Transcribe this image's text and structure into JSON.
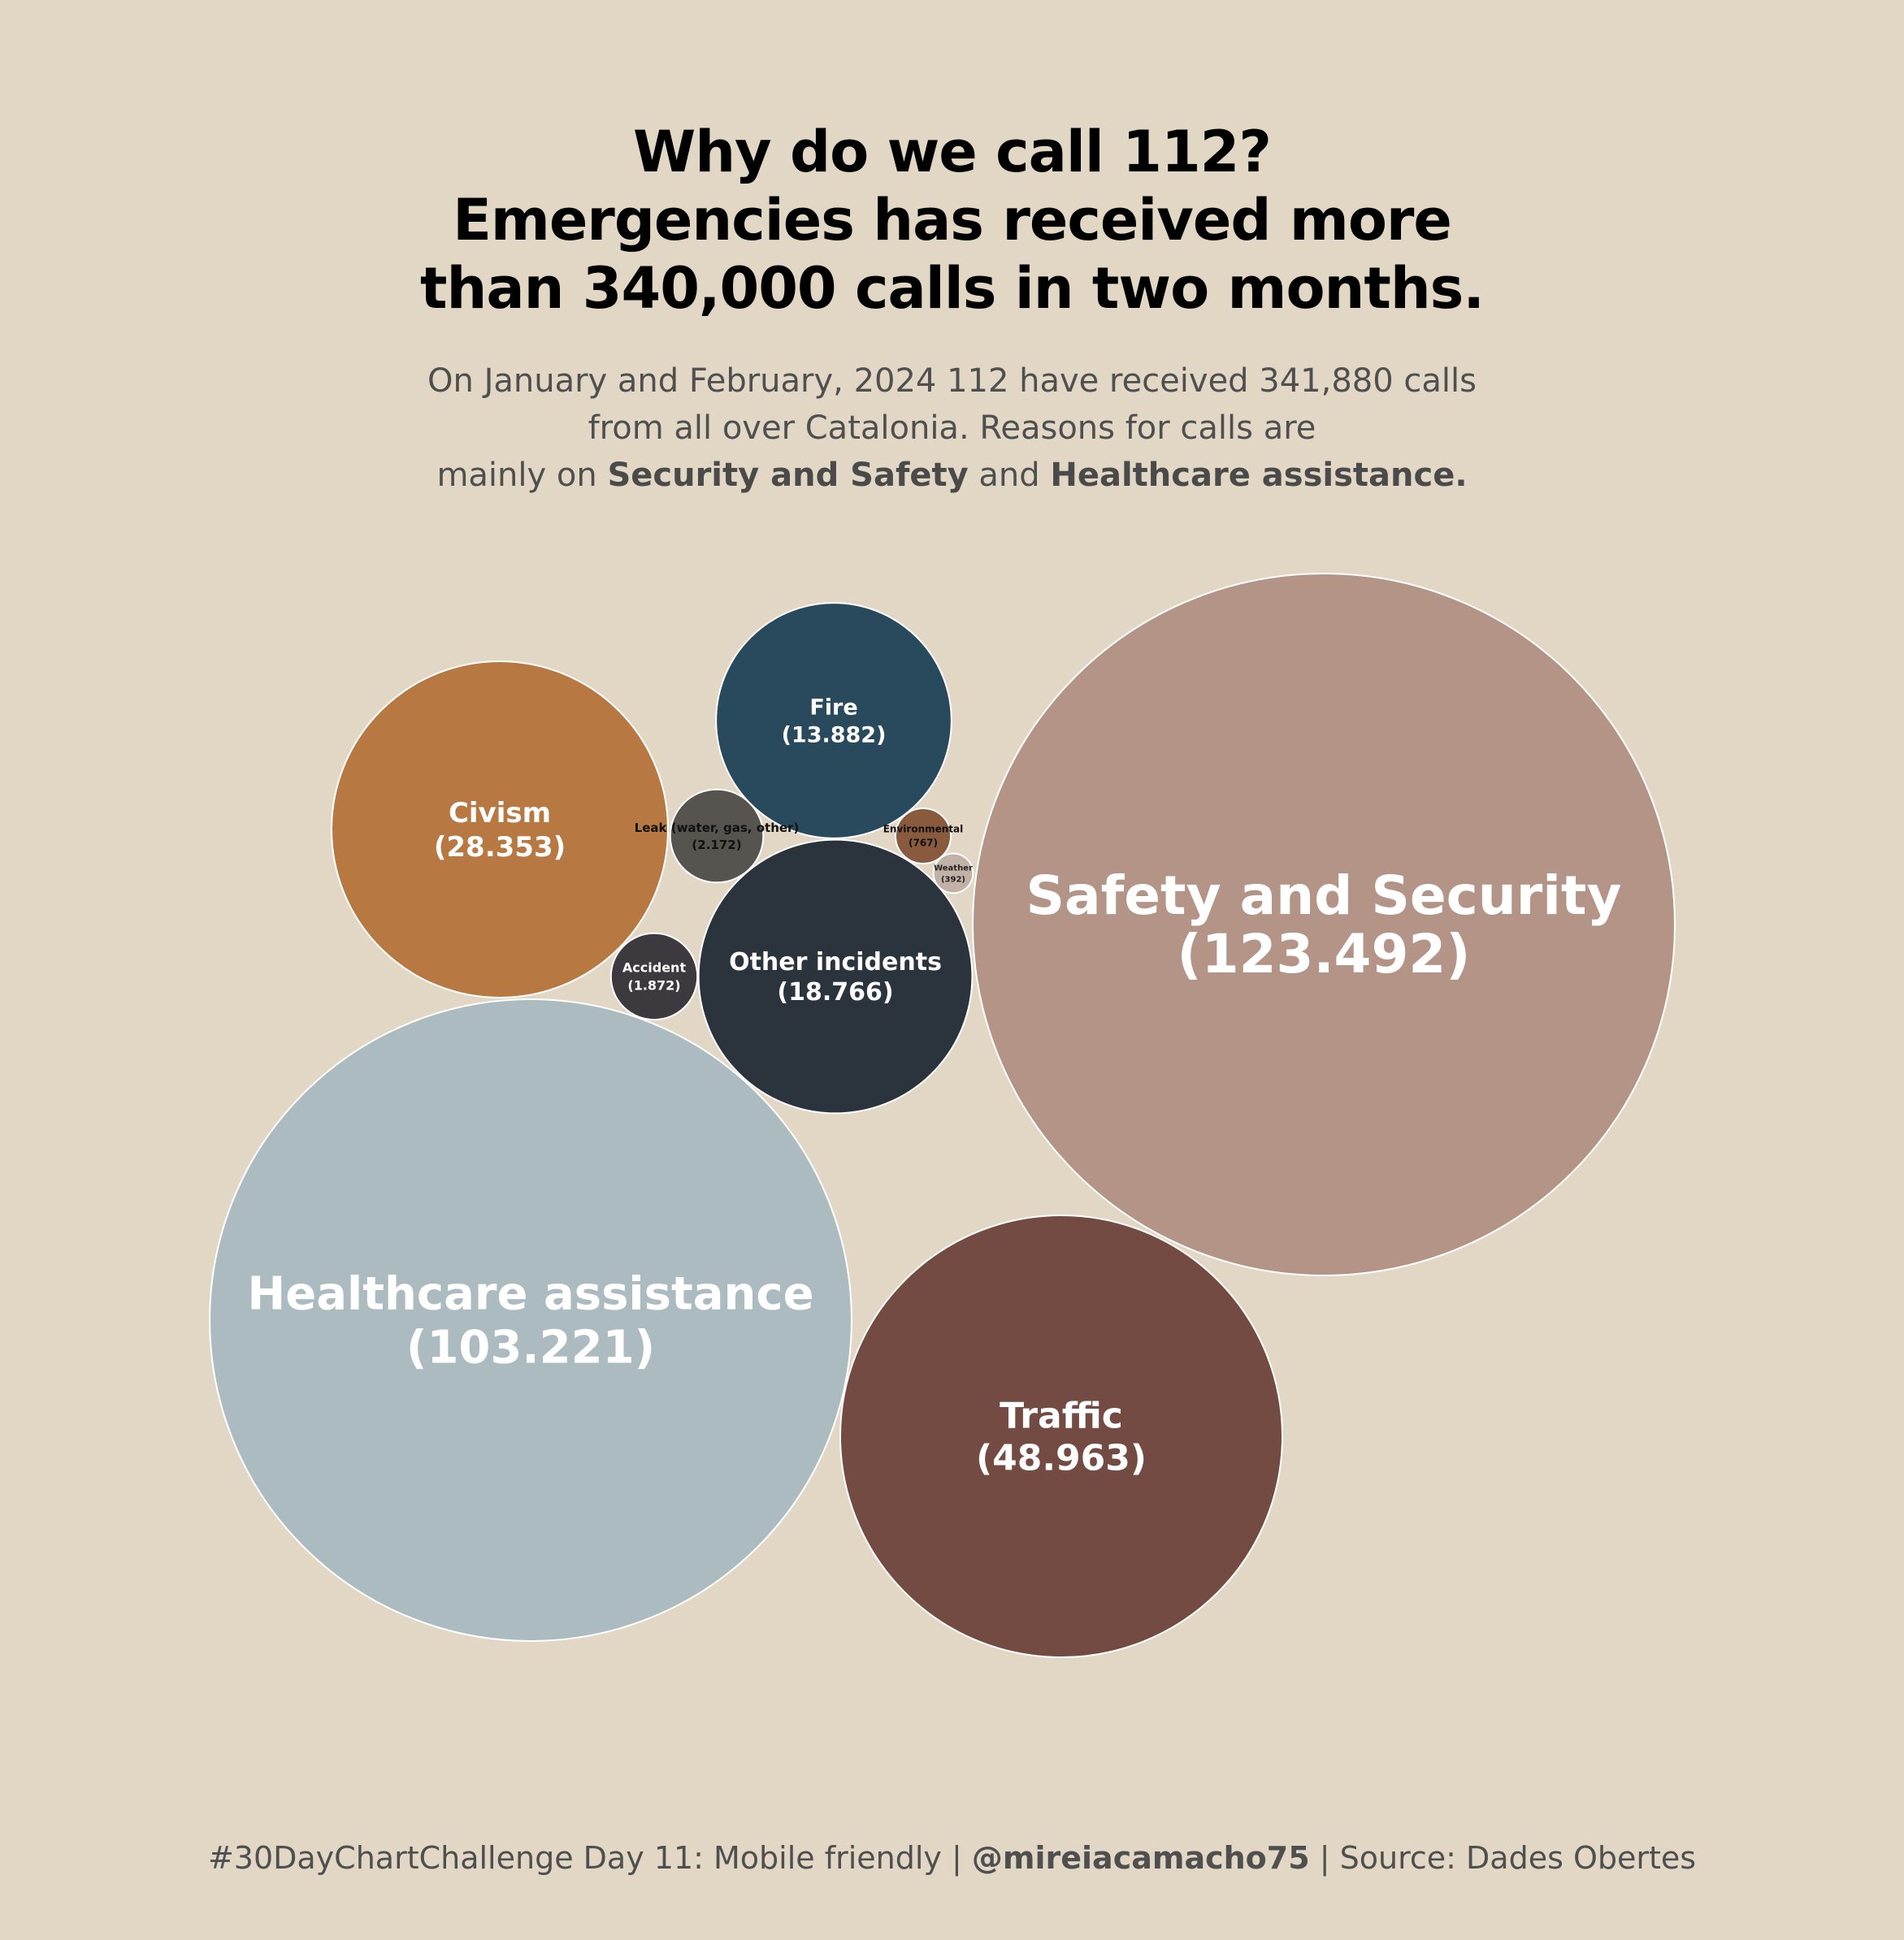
{
  "title_lines": [
    "Why do we call 112?",
    "Emergencies has received more",
    "than 340,000 calls in two months."
  ],
  "subtitle": {
    "line1": "On January and February, 2024 112 have received 341,880 calls",
    "line2": "from all over Catalonia. Reasons for calls are",
    "line3_prefix": "mainly on ",
    "highlight1": "Security and Safety",
    "line3_mid": " and ",
    "highlight2": "Healthcare assistance."
  },
  "footer": {
    "prefix": "#30DayChartChallenge Day 11: Mobile friendly | ",
    "handle": "@mireiacamacho75",
    "suffix": " | Source: Dades Obertes"
  },
  "chart_data": {
    "type": "bubble",
    "title": "Why do we call 112? Emergencies has received more than 340,000 calls in two months.",
    "value_label_format": "({value})",
    "bubbles": [
      {
        "id": "safety",
        "category": "Safety and Security",
        "value": 123492,
        "value_label": "123.492",
        "color": "#b59488"
      },
      {
        "id": "healthcare",
        "category": "Healthcare assistance",
        "value": 103221,
        "value_label": "103.221",
        "color": "#abbbbf"
      },
      {
        "id": "traffic",
        "category": "Traffic",
        "value": 48963,
        "value_label": "48.963",
        "color": "#734b43"
      },
      {
        "id": "civism",
        "category": "Civism",
        "value": 28353,
        "value_label": "28.353",
        "color": "#b77841"
      },
      {
        "id": "other",
        "category": "Other incidents",
        "value": 18766,
        "value_label": "18.766",
        "color": "#2b333c"
      },
      {
        "id": "fire",
        "category": "Fire",
        "value": 13882,
        "value_label": "13.882",
        "color": "#294a5d"
      },
      {
        "id": "leak",
        "category": "Leak (water, gas, other)",
        "value": 2172,
        "value_label": "2.172",
        "color": "#575450"
      },
      {
        "id": "accident",
        "category": "Accident",
        "value": 1872,
        "value_label": "1.872",
        "color": "#3c3a3e"
      },
      {
        "id": "environmental",
        "category": "Environmental",
        "value": 767,
        "value_label": "767",
        "color": "#8a5a3f"
      },
      {
        "id": "weather",
        "category": "Weather",
        "value": 392,
        "value_label": "392",
        "color": "#c2b1a6"
      }
    ]
  }
}
